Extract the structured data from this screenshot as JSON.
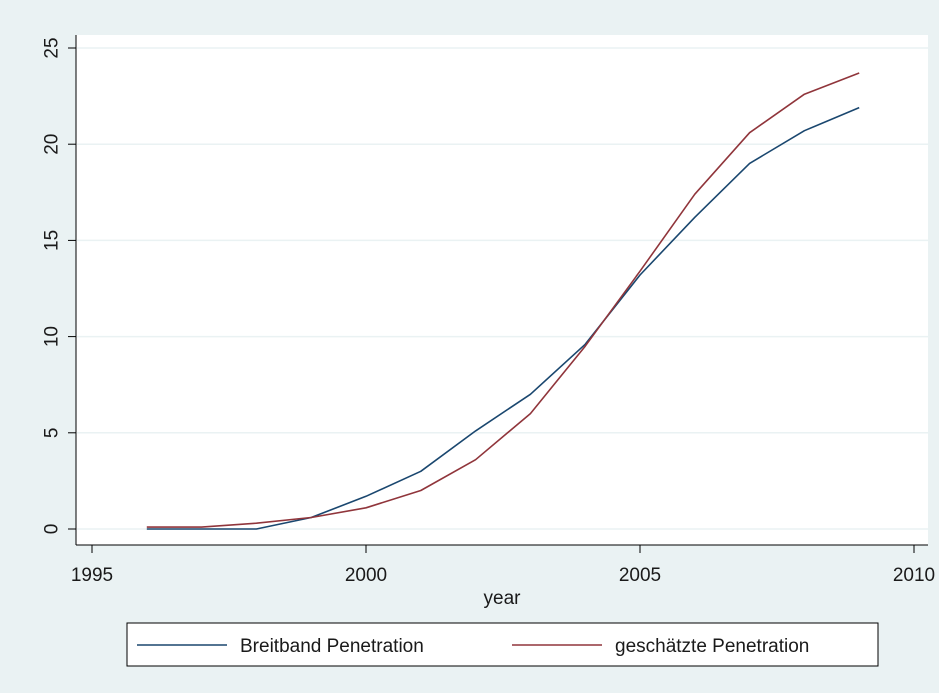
{
  "chart_data": {
    "type": "line",
    "title": "",
    "xlabel": "year",
    "ylabel": "",
    "xlim": [
      1995,
      2010
    ],
    "ylim": [
      0,
      25
    ],
    "x_ticks": [
      "1995",
      "2000",
      "2005",
      "2010"
    ],
    "y_ticks": [
      "0",
      "5",
      "10",
      "15",
      "20",
      "25"
    ],
    "x_tick_values": [
      1995,
      2000,
      2005,
      2010
    ],
    "y_tick_values": [
      0,
      5,
      10,
      15,
      20,
      25
    ],
    "grid": "horizontal",
    "legend_position": "bottom",
    "x": [
      1996,
      1997,
      1998,
      1999,
      2000,
      2001,
      2002,
      2003,
      2004,
      2005,
      2006,
      2007,
      2008,
      2009
    ],
    "series": [
      {
        "name": "Breitband Penetration",
        "color": "#1a476f",
        "values": [
          0.0,
          0.0,
          0.0,
          0.6,
          1.7,
          3.0,
          5.1,
          7.0,
          9.6,
          13.2,
          16.2,
          19.0,
          20.7,
          21.9
        ]
      },
      {
        "name": "geschätzte Penetration",
        "color": "#90353b",
        "values": [
          0.1,
          0.1,
          0.3,
          0.6,
          1.1,
          2.0,
          3.6,
          6.0,
          9.5,
          13.4,
          17.4,
          20.6,
          22.6,
          23.7
        ]
      }
    ]
  }
}
